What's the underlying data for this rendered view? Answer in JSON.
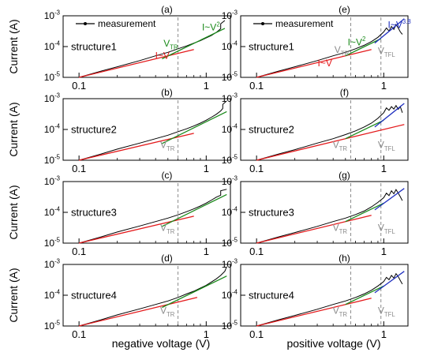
{
  "figure": {
    "ylabel": "Current (A)",
    "xlabel_left": "negative voltage (V)",
    "xlabel_right": "positive voltage (V)",
    "legend_label": "measurement"
  },
  "colors": {
    "measurement": "#000000",
    "ohmic_fit": "#e41a1c",
    "child_fit": "#1a8a1a",
    "tfl_fit": "#1f2fbf",
    "threshold": "#8c8c8c"
  },
  "chart_data": [
    {
      "type": "line",
      "id": "a",
      "panel_label": "(a)",
      "structure_label": "structure1",
      "xscale": "log",
      "yscale": "log",
      "xlim": [
        0.075,
        1.55
      ],
      "ylim": [
        1e-05,
        0.001
      ],
      "yticks": [
        "10-5",
        "10-4",
        "10-3"
      ],
      "xticks": [
        "0.1",
        "1"
      ],
      "legend": "top-left",
      "series": [
        {
          "name": "measurement",
          "role": "measurement",
          "x": [
            0.1,
            0.15,
            0.2,
            0.3,
            0.4,
            0.5,
            0.6,
            0.7,
            0.8,
            0.9,
            1.0,
            1.1,
            1.2,
            1.25,
            1.3,
            1.3,
            1.4
          ],
          "y": [
            1e-05,
            1.6e-05,
            2.2e-05,
            3.5e-05,
            5e-05,
            6.5e-05,
            8.5e-05,
            0.000105,
            0.00013,
            0.000155,
            0.00019,
            0.00023,
            0.00029,
            0.00033,
            0.00038,
            0.00055,
            0.0007
          ]
        },
        {
          "name": "I~V",
          "role": "ohmic",
          "x": [
            0.1,
            0.8
          ],
          "y": [
            1e-05,
            8e-05
          ]
        },
        {
          "name": "I~V2",
          "role": "child",
          "x": [
            0.45,
            1.4
          ],
          "y": [
            4e-05,
            0.00039
          ]
        }
      ],
      "threshold_lines": [
        {
          "label": "VTR",
          "x": 0.6
        }
      ],
      "annotations": [
        {
          "text": "I~V",
          "color_key": "ohmic_fit"
        },
        {
          "text": "VTR",
          "color_key": "child_fit"
        },
        {
          "text": "I~V2",
          "color_key": "child_fit"
        }
      ]
    },
    {
      "type": "line",
      "id": "b",
      "panel_label": "(b)",
      "structure_label": "structure2",
      "xscale": "log",
      "yscale": "log",
      "xlim": [
        0.075,
        1.55
      ],
      "ylim": [
        1e-05,
        0.001
      ],
      "yticks": [
        "10-5",
        "10-4",
        "10-3"
      ],
      "xticks": [
        "0.1",
        "1"
      ],
      "series": [
        {
          "name": "measurement",
          "role": "measurement",
          "x": [
            0.1,
            0.15,
            0.2,
            0.3,
            0.4,
            0.5,
            0.6,
            0.7,
            0.8,
            0.9,
            1.0,
            1.1,
            1.2,
            1.3,
            1.35,
            1.35,
            1.45
          ],
          "y": [
            1e-05,
            1.6e-05,
            2.3e-05,
            3.6e-05,
            5e-05,
            6.5e-05,
            8.5e-05,
            0.000105,
            0.00013,
            0.00016,
            0.0002,
            0.00025,
            0.00031,
            0.0004,
            0.00048,
            0.00065,
            0.00085
          ]
        },
        {
          "name": "I~V",
          "role": "ohmic",
          "x": [
            0.1,
            0.8
          ],
          "y": [
            1e-05,
            7.5e-05
          ]
        },
        {
          "name": "I~V2",
          "role": "child",
          "x": [
            0.45,
            1.45
          ],
          "y": [
            3.5e-05,
            0.00038
          ]
        }
      ],
      "threshold_lines": [
        {
          "label": "VTR",
          "x": 0.6
        }
      ],
      "annotations": [
        {
          "text": "VTR",
          "color_key": "threshold"
        }
      ]
    },
    {
      "type": "line",
      "id": "c",
      "panel_label": "(c)",
      "structure_label": "structure3",
      "xscale": "log",
      "yscale": "log",
      "xlim": [
        0.075,
        1.55
      ],
      "ylim": [
        1e-05,
        0.001
      ],
      "yticks": [
        "10-5",
        "10-4",
        "10-3"
      ],
      "xticks": [
        "0.1",
        "1"
      ],
      "series": [
        {
          "name": "measurement",
          "role": "measurement",
          "x": [
            0.1,
            0.15,
            0.2,
            0.3,
            0.4,
            0.5,
            0.6,
            0.7,
            0.8,
            0.9,
            1.0,
            1.1,
            1.2,
            1.3,
            1.3,
            1.45
          ],
          "y": [
            1e-05,
            1.6e-05,
            2.3e-05,
            3.6e-05,
            5e-05,
            6.5e-05,
            8.3e-05,
            0.000105,
            0.00013,
            0.00016,
            0.0002,
            0.00025,
            0.00031,
            0.00036,
            0.0005,
            0.00056
          ]
        },
        {
          "name": "I~V",
          "role": "ohmic",
          "x": [
            0.1,
            0.8
          ],
          "y": [
            1e-05,
            7.5e-05
          ]
        },
        {
          "name": "I~V2",
          "role": "child",
          "x": [
            0.45,
            1.45
          ],
          "y": [
            3.5e-05,
            0.00038
          ]
        }
      ],
      "threshold_lines": [
        {
          "label": "VTR",
          "x": 0.6
        }
      ],
      "annotations": [
        {
          "text": "VTR",
          "color_key": "threshold"
        }
      ]
    },
    {
      "type": "line",
      "id": "d",
      "panel_label": "(d)",
      "structure_label": "structure4",
      "xscale": "log",
      "yscale": "log",
      "xlim": [
        0.075,
        1.55
      ],
      "ylim": [
        1e-05,
        0.001
      ],
      "yticks": [
        "10-5",
        "10-4",
        "10-3"
      ],
      "xticks": [
        "0.1",
        "1"
      ],
      "series": [
        {
          "name": "measurement",
          "role": "measurement",
          "x": [
            0.1,
            0.15,
            0.2,
            0.3,
            0.4,
            0.5,
            0.6,
            0.7,
            0.8,
            0.9,
            1.0,
            1.1,
            1.2,
            1.3,
            1.4,
            1.45
          ],
          "y": [
            1e-05,
            1.6e-05,
            2.3e-05,
            3.6e-05,
            5e-05,
            6.5e-05,
            8.5e-05,
            0.00011,
            0.000135,
            0.00017,
            0.00021,
            0.00027,
            0.00034,
            0.00044,
            0.0006,
            0.00085
          ]
        },
        {
          "name": "I~V",
          "role": "ohmic",
          "x": [
            0.1,
            0.85
          ],
          "y": [
            1e-05,
            8.5e-05
          ]
        },
        {
          "name": "I~V2",
          "role": "child",
          "x": [
            0.45,
            1.45
          ],
          "y": [
            4e-05,
            0.00042
          ]
        }
      ],
      "threshold_lines": [
        {
          "label": "VTR",
          "x": 0.6
        }
      ],
      "annotations": [
        {
          "text": "VTR",
          "color_key": "threshold"
        }
      ]
    },
    {
      "type": "line",
      "id": "e",
      "panel_label": "(e)",
      "structure_label": "structure1",
      "xscale": "log",
      "yscale": "log",
      "xlim": [
        0.075,
        1.55
      ],
      "ylim": [
        1e-05,
        0.001
      ],
      "yticks": [
        "10-5",
        "10-4",
        "10-3"
      ],
      "xticks": [
        "0.1",
        "1"
      ],
      "legend": "top-left",
      "series": [
        {
          "name": "measurement",
          "role": "measurement",
          "x": [
            0.1,
            0.15,
            0.2,
            0.3,
            0.4,
            0.5,
            0.6,
            0.7,
            0.8,
            0.9,
            1.0,
            1.05,
            1.1,
            1.15,
            1.2,
            1.25,
            1.3,
            1.35,
            1.4
          ],
          "y": [
            1e-05,
            1.6e-05,
            2.2e-05,
            3.5e-05,
            5e-05,
            6.5e-05,
            8.5e-05,
            0.00011,
            0.000145,
            0.0002,
            0.0003,
            0.0004,
            0.00032,
            0.00045,
            0.00036,
            0.00052,
            0.0004,
            0.0003,
            0.00025
          ]
        },
        {
          "name": "I~V",
          "role": "ohmic",
          "x": [
            0.1,
            0.8
          ],
          "y": [
            1e-05,
            8e-05
          ]
        },
        {
          "name": "I~V2",
          "role": "child",
          "x": [
            0.5,
            0.95
          ],
          "y": [
            5e-05,
            0.00018
          ]
        },
        {
          "name": "I~V3.8",
          "role": "tfl",
          "x": [
            0.85,
            1.45
          ],
          "y": [
            0.00013,
            0.0008
          ]
        }
      ],
      "threshold_lines": [
        {
          "label": "VTR",
          "x": 0.55
        },
        {
          "label": "VTFL",
          "x": 0.95
        }
      ],
      "annotations": [
        {
          "text": "I~V",
          "color_key": "ohmic_fit"
        },
        {
          "text": "VTR",
          "color_key": "threshold"
        },
        {
          "text": "I~V2",
          "color_key": "child_fit"
        },
        {
          "text": "VTFL",
          "color_key": "threshold"
        },
        {
          "text": "I~V3.8",
          "color_key": "tfl_fit"
        }
      ]
    },
    {
      "type": "line",
      "id": "f",
      "panel_label": "(f)",
      "structure_label": "structure2",
      "xscale": "log",
      "yscale": "log",
      "xlim": [
        0.075,
        1.55
      ],
      "ylim": [
        1e-05,
        0.001
      ],
      "yticks": [
        "10-5",
        "10-4",
        "10-3"
      ],
      "xticks": [
        "0.1",
        "1"
      ],
      "series": [
        {
          "name": "measurement",
          "role": "measurement",
          "x": [
            0.1,
            0.15,
            0.2,
            0.3,
            0.4,
            0.5,
            0.6,
            0.7,
            0.8,
            0.9,
            1.0,
            1.05,
            1.1,
            1.15,
            1.2,
            1.25,
            1.3,
            1.35,
            1.4
          ],
          "y": [
            1e-05,
            1.6e-05,
            2.2e-05,
            3.6e-05,
            5e-05,
            6.8e-05,
            9e-05,
            0.00012,
            0.00016,
            0.00023,
            0.00035,
            0.0005,
            0.00042,
            0.00055,
            0.00046,
            0.0006,
            0.00045,
            0.00055,
            0.00035
          ]
        },
        {
          "name": "I~V",
          "role": "ohmic",
          "x": [
            0.1,
            1.45
          ],
          "y": [
            1e-05,
            0.000145
          ]
        },
        {
          "name": "I~V2",
          "role": "child",
          "x": [
            0.5,
            1.0
          ],
          "y": [
            5e-05,
            0.0002
          ]
        },
        {
          "name": "I~V3.8",
          "role": "tfl",
          "x": [
            0.85,
            1.45
          ],
          "y": [
            0.00012,
            0.0007
          ]
        }
      ],
      "threshold_lines": [
        {
          "label": "VTR",
          "x": 0.55
        },
        {
          "label": "VTFL",
          "x": 0.95
        }
      ],
      "annotations": [
        {
          "text": "VTR",
          "color_key": "threshold"
        },
        {
          "text": "VTFL",
          "color_key": "threshold"
        }
      ]
    },
    {
      "type": "line",
      "id": "g",
      "panel_label": "(g)",
      "structure_label": "structure3",
      "xscale": "log",
      "yscale": "log",
      "xlim": [
        0.075,
        1.55
      ],
      "ylim": [
        1e-05,
        0.001
      ],
      "yticks": [
        "10-5",
        "10-4",
        "10-3"
      ],
      "xticks": [
        "0.1",
        "1"
      ],
      "series": [
        {
          "name": "measurement",
          "role": "measurement",
          "x": [
            0.1,
            0.15,
            0.2,
            0.3,
            0.4,
            0.5,
            0.6,
            0.7,
            0.8,
            0.9,
            1.0,
            1.05,
            1.1,
            1.15,
            1.2,
            1.25,
            1.3,
            1.35,
            1.4
          ],
          "y": [
            1e-05,
            1.6e-05,
            2.2e-05,
            3.5e-05,
            5e-05,
            6.5e-05,
            8.5e-05,
            0.00011,
            0.00015,
            0.00021,
            0.0003,
            0.00042,
            0.00035,
            0.0005,
            0.0004,
            0.00055,
            0.00042,
            0.00032,
            0.00024
          ]
        },
        {
          "name": "I~V",
          "role": "ohmic",
          "x": [
            0.1,
            0.8
          ],
          "y": [
            1e-05,
            8e-05
          ]
        },
        {
          "name": "I~V2",
          "role": "child",
          "x": [
            0.5,
            1.0
          ],
          "y": [
            5e-05,
            0.0002
          ]
        },
        {
          "name": "I~V3.8",
          "role": "tfl",
          "x": [
            0.85,
            1.45
          ],
          "y": [
            0.00012,
            0.0006
          ]
        }
      ],
      "threshold_lines": [
        {
          "label": "VTR",
          "x": 0.55
        },
        {
          "label": "VTFL",
          "x": 0.95
        }
      ],
      "annotations": [
        {
          "text": "VTR",
          "color_key": "threshold"
        },
        {
          "text": "VTFL",
          "color_key": "threshold"
        }
      ]
    },
    {
      "type": "line",
      "id": "h",
      "panel_label": "(h)",
      "structure_label": "structure4",
      "xscale": "log",
      "yscale": "log",
      "xlim": [
        0.075,
        1.55
      ],
      "ylim": [
        1e-05,
        0.001
      ],
      "yticks": [
        "10-5",
        "10-4",
        "10-3"
      ],
      "xticks": [
        "0.1",
        "1"
      ],
      "series": [
        {
          "name": "measurement",
          "role": "measurement",
          "x": [
            0.1,
            0.15,
            0.2,
            0.3,
            0.4,
            0.5,
            0.6,
            0.7,
            0.8,
            0.9,
            1.0,
            1.05,
            1.1,
            1.15,
            1.2,
            1.25,
            1.3,
            1.35,
            1.4
          ],
          "y": [
            1e-05,
            1.6e-05,
            2.2e-05,
            3.5e-05,
            5e-05,
            6.5e-05,
            8.5e-05,
            0.00011,
            0.000145,
            0.0002,
            0.00028,
            0.00038,
            0.00032,
            0.00044,
            0.00036,
            0.0005,
            0.0004,
            0.0003,
            0.00023
          ]
        },
        {
          "name": "I~V",
          "role": "ohmic",
          "x": [
            0.1,
            0.8
          ],
          "y": [
            1e-05,
            8e-05
          ]
        },
        {
          "name": "I~V2",
          "role": "child",
          "x": [
            0.5,
            1.0
          ],
          "y": [
            5e-05,
            0.0002
          ]
        },
        {
          "name": "I~V3.8",
          "role": "tfl",
          "x": [
            0.85,
            1.45
          ],
          "y": [
            0.00012,
            0.0006
          ]
        }
      ],
      "threshold_lines": [
        {
          "label": "VTR",
          "x": 0.55
        },
        {
          "label": "VTFL",
          "x": 0.95
        }
      ],
      "annotations": [
        {
          "text": "VTR",
          "color_key": "threshold"
        },
        {
          "text": "VTFL",
          "color_key": "threshold"
        }
      ]
    }
  ]
}
